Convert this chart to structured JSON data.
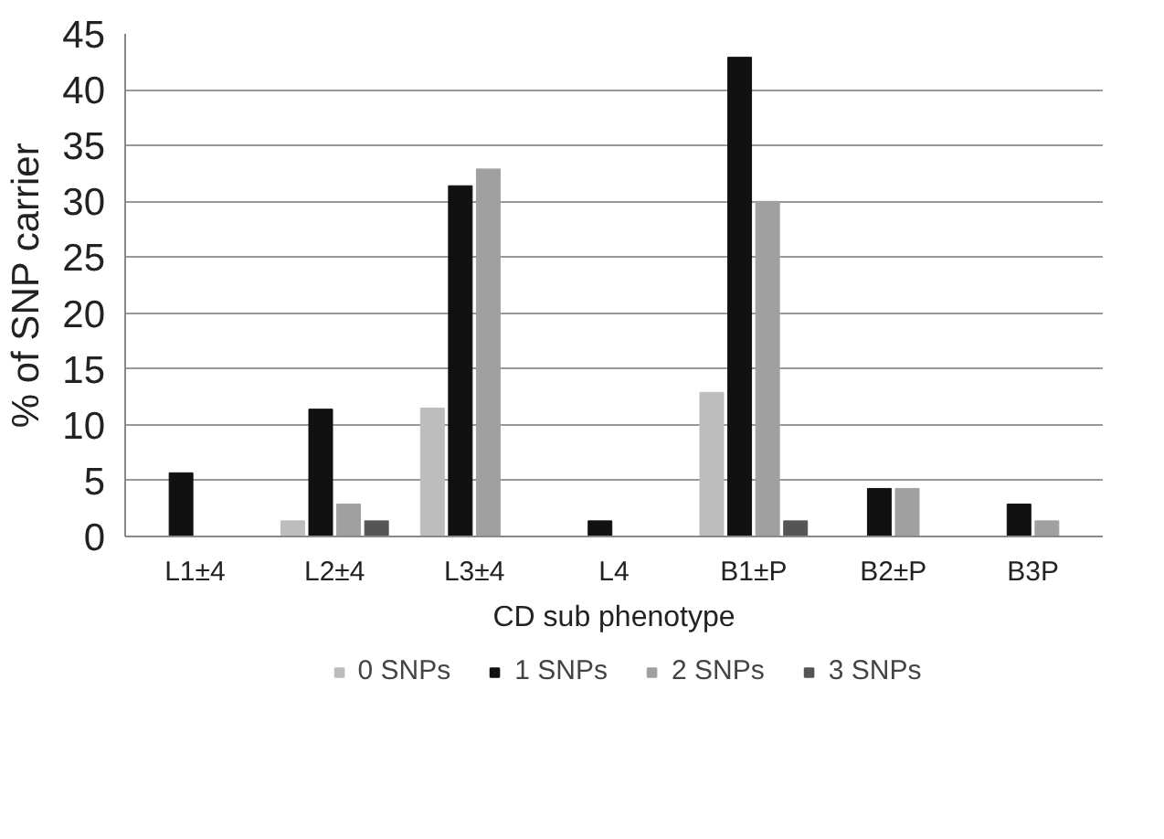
{
  "chart_data": {
    "type": "bar",
    "xlabel": "CD sub phenotype",
    "ylabel": "% of SNP carrier",
    "categories": [
      "L1±4",
      "L2±4",
      "L3±4",
      "L4",
      "B1±P",
      "B2±P",
      "B3P"
    ],
    "series": [
      {
        "name": "0 SNPs",
        "color": "#bdbdbd",
        "values": [
          0,
          1.4,
          11.5,
          0,
          12.9,
          0,
          0
        ]
      },
      {
        "name": "1 SNPs",
        "color": "#111111",
        "values": [
          5.7,
          11.4,
          31.4,
          1.4,
          42.9,
          4.3,
          2.9
        ]
      },
      {
        "name": "2 SNPs",
        "color": "#a0a0a0",
        "values": [
          0,
          2.9,
          32.9,
          0,
          30,
          4.3,
          1.4
        ]
      },
      {
        "name": "3 SNPs",
        "color": "#555555",
        "values": [
          0,
          1.4,
          0,
          0,
          1.4,
          0,
          0
        ]
      }
    ],
    "ylim": [
      0,
      45
    ],
    "yticks": [
      0,
      5,
      10,
      15,
      20,
      25,
      30,
      35,
      40,
      45
    ],
    "grid": "y",
    "legend": "bottom"
  }
}
